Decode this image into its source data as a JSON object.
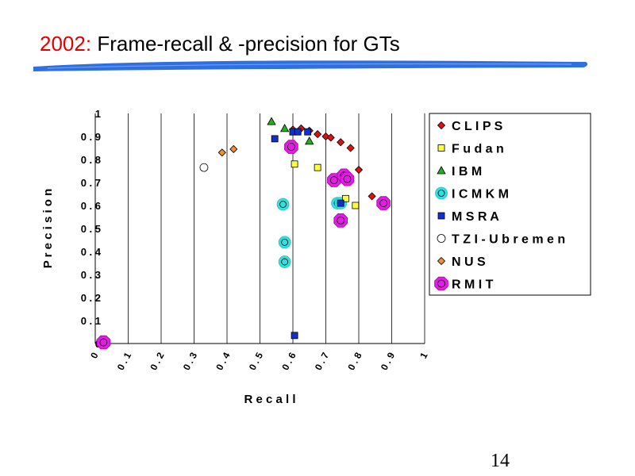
{
  "slide": {
    "title_year": "2002:",
    "title_rest": "Frame-recall & -precision for GTs",
    "page_number": "14"
  },
  "chart_data": {
    "type": "scatter",
    "title": "",
    "xlabel": "Recall",
    "ylabel": "Precision",
    "xlim": [
      0,
      1
    ],
    "ylim": [
      0,
      1
    ],
    "x_ticks": [
      "0",
      "0.1",
      "0.2",
      "0.3",
      "0.4",
      "0.5",
      "0.6",
      "0.7",
      "0.8",
      "0.9",
      "1"
    ],
    "y_ticks": [
      "0",
      "0.1",
      "0.2",
      "0.3",
      "0.4",
      "0.5",
      "0.6",
      "0.7",
      "0.8",
      "0.9",
      "1"
    ],
    "legend_position": "right",
    "grid": "vertical",
    "series": [
      {
        "name": "CLIPS",
        "marker": "diamond",
        "color": "#e01010",
        "points": [
          [
            0.6,
            0.93
          ],
          [
            0.625,
            0.935
          ],
          [
            0.65,
            0.925
          ],
          [
            0.675,
            0.91
          ],
          [
            0.7,
            0.9
          ],
          [
            0.715,
            0.895
          ],
          [
            0.745,
            0.875
          ],
          [
            0.775,
            0.85
          ],
          [
            0.8,
            0.755
          ],
          [
            0.84,
            0.64
          ]
        ]
      },
      {
        "name": "Fudan",
        "marker": "square",
        "color": "#ffff40",
        "points": [
          [
            0.605,
            0.78
          ],
          [
            0.675,
            0.765
          ],
          [
            0.76,
            0.63
          ],
          [
            0.79,
            0.6
          ]
        ]
      },
      {
        "name": "IBM",
        "marker": "triangle",
        "color": "#20b020",
        "points": [
          [
            0.535,
            0.965
          ],
          [
            0.575,
            0.935
          ],
          [
            0.65,
            0.88
          ]
        ]
      },
      {
        "name": "ICMKM",
        "marker": "circle",
        "color": "#30e0e0",
        "points": [
          [
            0.57,
            0.605
          ],
          [
            0.575,
            0.44
          ],
          [
            0.575,
            0.355
          ],
          [
            0.735,
            0.61
          ],
          [
            0.745,
            0.61
          ]
        ]
      },
      {
        "name": "MSRA",
        "marker": "square",
        "color": "#1030d0",
        "points": [
          [
            0.545,
            0.89
          ],
          [
            0.6,
            0.92
          ],
          [
            0.615,
            0.92
          ],
          [
            0.645,
            0.92
          ],
          [
            0.745,
            0.61
          ],
          [
            0.605,
            0.035
          ]
        ]
      },
      {
        "name": "TZI-Ubremen",
        "marker": "circle",
        "color": "#ffffff",
        "points": [
          [
            0.33,
            0.765
          ]
        ]
      },
      {
        "name": "NUS",
        "marker": "diamond",
        "color": "#f09030",
        "points": [
          [
            0.385,
            0.83
          ],
          [
            0.42,
            0.845
          ]
        ]
      },
      {
        "name": "RMIT",
        "marker": "octagon",
        "color": "#e020e0",
        "points": [
          [
            0.025,
            0.005
          ],
          [
            0.595,
            0.855
          ],
          [
            0.725,
            0.71
          ],
          [
            0.755,
            0.73
          ],
          [
            0.765,
            0.715
          ],
          [
            0.745,
            0.535
          ],
          [
            0.875,
            0.61
          ]
        ]
      }
    ]
  },
  "legend_labels": [
    "C L I P S",
    "F u d a n",
    "I B M",
    "I C M K M",
    "M S R A",
    "T Z I - U b r e m e n",
    "N U S",
    "R M I T"
  ],
  "axis_text": {
    "x_ticks_display": [
      "0",
      "0 . 1",
      "0 . 2",
      "0 . 3",
      "0 . 4",
      "0 . 5",
      "0 . 6",
      "0 . 7",
      "0 . 8",
      "0 . 9",
      "1"
    ],
    "y_ticks_display": [
      "0",
      "0 . 1",
      "0 . 2",
      "0 . 3",
      "0 . 4",
      "0 . 5",
      "0 . 6",
      "0 . 7",
      "0 . 8",
      "0 . 9",
      "1"
    ],
    "xlabel_display": "R e c a l l",
    "ylabel_display": "P r e c i s i o n"
  }
}
